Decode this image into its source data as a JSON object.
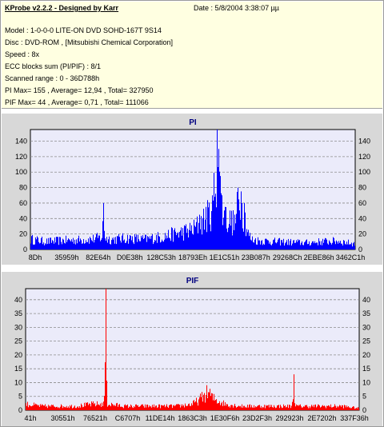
{
  "header": {
    "title": "KProbe v2.2.2 - Designed by Karr",
    "date": "Date : 5/8/2004 3:38:07 µµ",
    "lines": [
      "Model : 1-0-0-0 LITE-ON DVD SOHD-167T    9S14",
      "Disc : DVD-ROM ,  [Mitsubishi Chemical Corporation]",
      "Speed : 8x",
      "ECC blocks sum (PI/PIF) : 8/1",
      "Scanned range : 0 - 36D788h",
      "PI Max= 155 , Average= 12,94 , Total= 327950",
      "PIF Max= 44 , Average= 0,71 , Total= 111066"
    ]
  },
  "colors": {
    "pi": "#0000ff",
    "pif": "#ff0000",
    "plot_bg": "#ebebfa",
    "panel_bg": "#d8d8d8",
    "title": "#000080"
  },
  "chart_data": [
    {
      "type": "bar",
      "title": "PI",
      "xlabel": "",
      "ylabel": "",
      "ylim": [
        0,
        155
      ],
      "yticks": [
        0,
        20,
        40,
        60,
        80,
        100,
        120,
        140
      ],
      "xtick_labels": [
        "8Dh",
        "35959h",
        "82E64h",
        "D0E38h",
        "128C53h",
        "18793Eh",
        "1E1C51h",
        "23B087h",
        "29268Ch",
        "2EBE86h",
        "3462C1h"
      ],
      "grid": true,
      "series": [
        {
          "color": "#0000ff",
          "x": [
            0,
            0.05,
            0.1,
            0.15,
            0.2,
            0.22,
            0.225,
            0.23,
            0.25,
            0.3,
            0.35,
            0.4,
            0.45,
            0.5,
            0.52,
            0.54,
            0.56,
            0.575,
            0.58,
            0.585,
            0.59,
            0.6,
            0.62,
            0.63,
            0.64,
            0.65,
            0.66,
            0.67,
            0.68,
            0.7,
            0.75,
            0.8,
            0.85,
            0.9,
            0.95,
            1.0
          ],
          "values": [
            18,
            14,
            16,
            17,
            19,
            22,
            60,
            20,
            18,
            20,
            18,
            22,
            28,
            35,
            45,
            55,
            70,
            155,
            130,
            95,
            70,
            55,
            50,
            45,
            80,
            75,
            60,
            30,
            18,
            16,
            14,
            13,
            12,
            14,
            15,
            10
          ]
        }
      ]
    },
    {
      "type": "bar",
      "title": "PIF",
      "xlabel": "",
      "ylabel": "",
      "ylim": [
        0,
        44
      ],
      "yticks": [
        0,
        5,
        10,
        15,
        20,
        25,
        30,
        35,
        40
      ],
      "xtick_labels": [
        "41h",
        "30551h",
        "76521h",
        "C6707h",
        "11DE14h",
        "1863C3h",
        "1E30F6h",
        "23D2F3h",
        "292923h",
        "2E7202h",
        "337F36h"
      ],
      "grid": true,
      "series": [
        {
          "color": "#ff0000",
          "x": [
            0,
            0.05,
            0.1,
            0.15,
            0.2,
            0.235,
            0.24,
            0.245,
            0.3,
            0.35,
            0.4,
            0.45,
            0.5,
            0.52,
            0.54,
            0.55,
            0.56,
            0.6,
            0.65,
            0.7,
            0.75,
            0.8,
            0.805,
            0.81,
            0.85,
            0.9,
            0.95,
            1.0
          ],
          "values": [
            3,
            2,
            2,
            2,
            3,
            3,
            44,
            3,
            2,
            2,
            2,
            2,
            3,
            5,
            8,
            9,
            6,
            3,
            2,
            2,
            2,
            2,
            13,
            2,
            2,
            2,
            2,
            1
          ]
        }
      ]
    }
  ]
}
